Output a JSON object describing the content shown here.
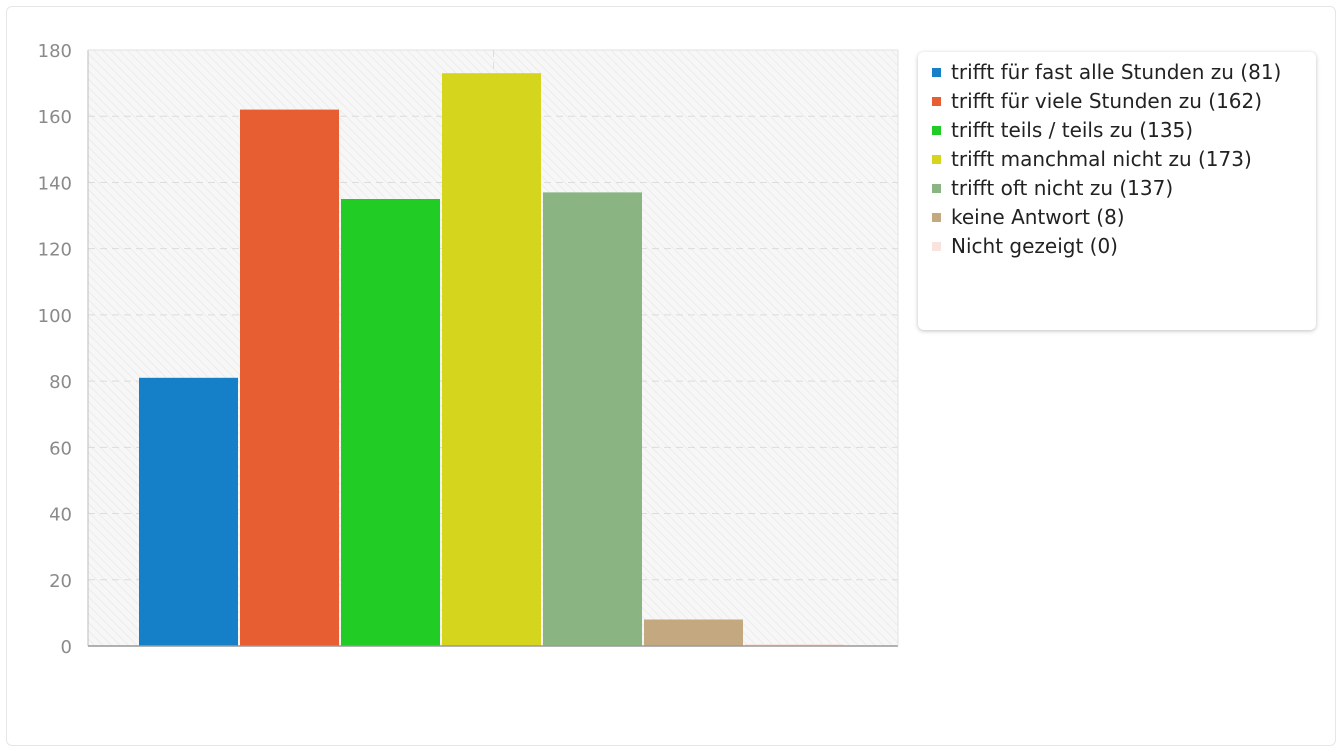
{
  "chart_data": {
    "type": "bar",
    "categories": [
      "trifft für fast alle Stunden zu",
      "trifft für viele Stunden zu",
      "trifft teils / teils zu",
      "trifft manchmal nicht zu",
      "trifft oft nicht zu",
      "keine Antwort",
      "Nicht gezeigt"
    ],
    "values": [
      81,
      162,
      135,
      173,
      137,
      8,
      0
    ],
    "colors": [
      "#1580c8",
      "#e85e33",
      "#21cd24",
      "#d5d51e",
      "#8ab582",
      "#c4a880",
      "#f8e4dc"
    ],
    "ylim": [
      0,
      180
    ],
    "yticks": [
      "0",
      "20",
      "40",
      "60",
      "80",
      "100",
      "120",
      "140",
      "160",
      "180"
    ],
    "grid": true,
    "legend_position": "right",
    "legend": [
      "trifft für fast alle Stunden zu (81)",
      "trifft für viele Stunden zu (162)",
      "trifft teils / teils zu (135)",
      "trifft manchmal nicht zu (173)",
      "trifft oft nicht zu (137)",
      "keine Antwort (8)",
      "Nicht gezeigt (0)"
    ]
  }
}
